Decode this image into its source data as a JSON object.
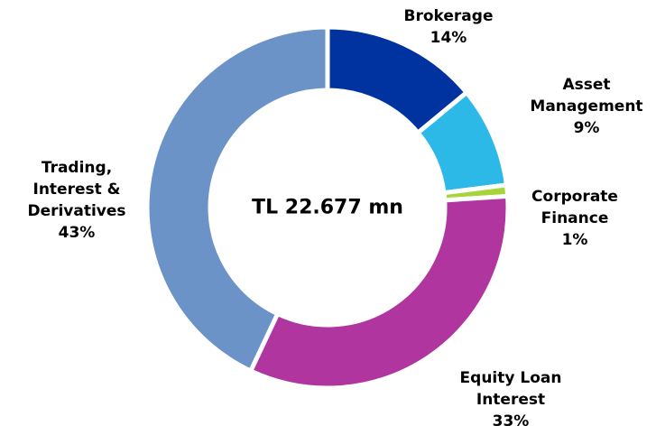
{
  "chart_data": {
    "type": "donut",
    "center_text": "TL 22.677 mn",
    "categories": [
      "Brokerage",
      "Asset Management",
      "Corporate Finance",
      "Equity Loan Interest",
      "Trading, Interest & Derivatives"
    ],
    "values": [
      14,
      9,
      1,
      33,
      43
    ],
    "value_labels": [
      "14%",
      "9%",
      "1%",
      "33%",
      "43%"
    ],
    "colors": [
      "#0033a0",
      "#2cb9e8",
      "#a6d43a",
      "#b0359e",
      "#6b93c8"
    ]
  }
}
